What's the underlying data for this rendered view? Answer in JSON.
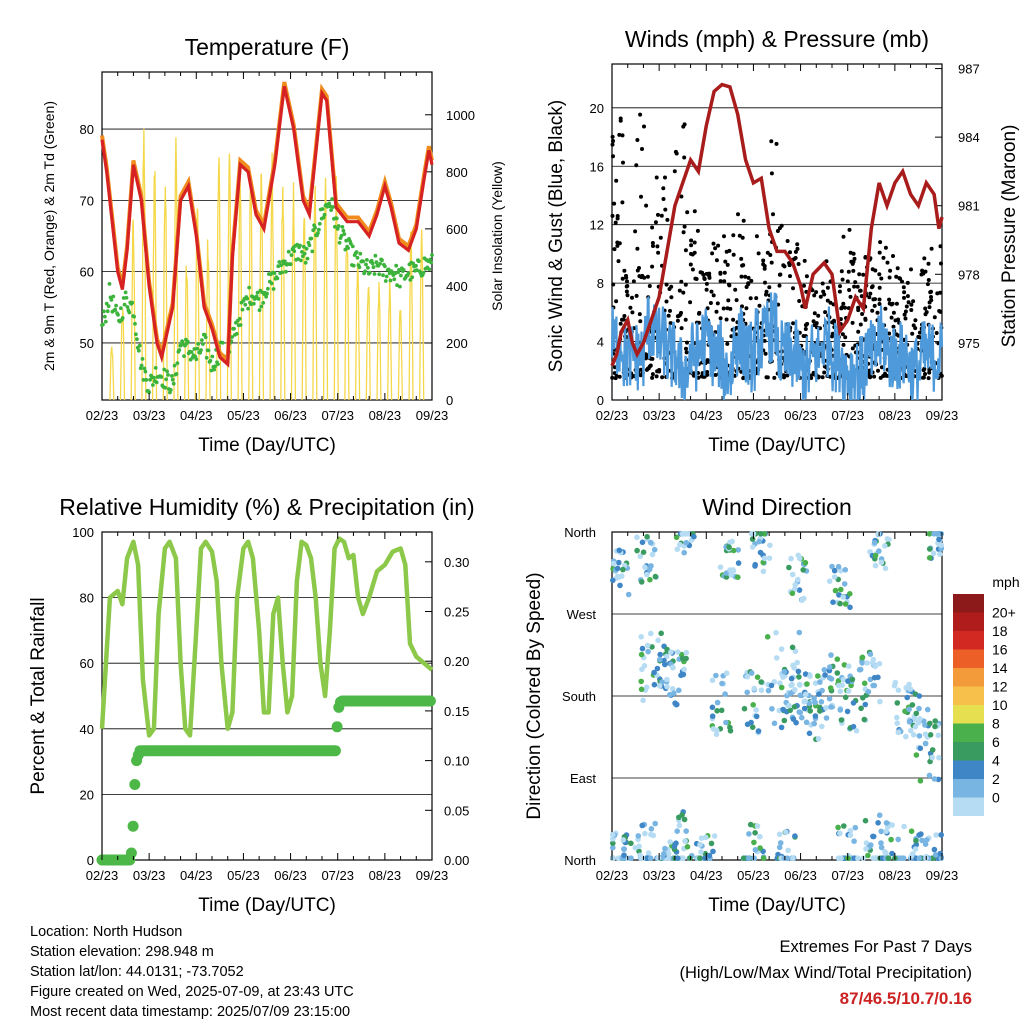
{
  "colors": {
    "temp_red": "#d62222",
    "temp_orange": "#f08c1e",
    "dewpoint_green": "#3cb43c",
    "solar_yellow": "#f5d84a",
    "gust_black": "#000000",
    "wind_blue": "#4d99d9",
    "pressure_maroon": "#a81c1c",
    "rh_lightgreen": "#8cc84a",
    "precip_green": "#4db848",
    "extremes_red": "#cc2222"
  },
  "chart_data": [
    {
      "id": "temperature",
      "type": "line",
      "title": "Temperature (F)",
      "xlabel": "Time (Day/UTC)",
      "ylabel_left": "2m & 9m T (Red, Orange) & 2m Td (Green)",
      "ylabel_right": "Solar Insolation (Yellow)",
      "x_ticks": [
        "02/23",
        "03/23",
        "04/23",
        "05/23",
        "06/23",
        "07/23",
        "08/23",
        "09/23"
      ],
      "ylim_left": [
        42,
        88
      ],
      "ylim_right": [
        0,
        1150
      ],
      "y_ticks_left": [
        50,
        60,
        70,
        80
      ],
      "y_ticks_right": [
        0,
        200,
        400,
        600,
        800,
        1000
      ],
      "series": [
        {
          "name": "2m T",
          "points": [
            [
              0,
              78.5
            ],
            [
              0.3,
              74
            ],
            [
              1,
              60
            ],
            [
              1.3,
              57.5
            ],
            [
              1.6,
              63
            ],
            [
              2,
              75
            ],
            [
              2.5,
              70
            ],
            [
              3,
              58
            ],
            [
              3.5,
              50
            ],
            [
              3.8,
              48
            ],
            [
              4.5,
              55
            ],
            [
              5,
              70
            ],
            [
              5.5,
              72
            ],
            [
              6,
              65
            ],
            [
              6.5,
              55
            ],
            [
              7,
              52
            ],
            [
              7.5,
              48
            ],
            [
              8,
              47
            ],
            [
              8.3,
              62
            ],
            [
              8.8,
              75
            ],
            [
              9.3,
              74
            ],
            [
              9.8,
              68
            ],
            [
              10.3,
              66
            ],
            [
              11,
              75
            ],
            [
              11.6,
              86
            ],
            [
              12.2,
              80
            ],
            [
              12.8,
              70
            ],
            [
              13.2,
              68
            ],
            [
              14,
              85
            ],
            [
              14.3,
              84
            ],
            [
              14.9,
              69
            ],
            [
              15.6,
              67
            ],
            [
              16.3,
              67
            ],
            [
              17,
              65
            ],
            [
              17.5,
              68
            ],
            [
              18,
              72
            ],
            [
              18.4,
              69
            ],
            [
              18.9,
              64
            ],
            [
              19.5,
              63
            ],
            [
              20,
              66
            ],
            [
              20.5,
              73
            ],
            [
              20.8,
              77
            ],
            [
              21,
              75
            ]
          ]
        },
        {
          "name": "2m Td",
          "points": [
            [
              0,
              52
            ],
            [
              0.5,
              57
            ],
            [
              1,
              53
            ],
            [
              1.5,
              56
            ],
            [
              2,
              55
            ],
            [
              2.5,
              47
            ],
            [
              3,
              44
            ],
            [
              3.5,
              46
            ],
            [
              4,
              45
            ],
            [
              4.5,
              44
            ],
            [
              5,
              50
            ],
            [
              5.5,
              49
            ],
            [
              6,
              48
            ],
            [
              6.5,
              50
            ],
            [
              7,
              47
            ],
            [
              7.5,
              49
            ],
            [
              8,
              48
            ],
            [
              8.5,
              52
            ],
            [
              9,
              55
            ],
            [
              9.5,
              57
            ],
            [
              10,
              56
            ],
            [
              10.5,
              58
            ],
            [
              11,
              59
            ],
            [
              11.5,
              61
            ],
            [
              12,
              62
            ],
            [
              12.5,
              63
            ],
            [
              13,
              62
            ],
            [
              13.5,
              65
            ],
            [
              14,
              68
            ],
            [
              14.5,
              70
            ],
            [
              15,
              66
            ],
            [
              15.5,
              64
            ],
            [
              16,
              62
            ],
            [
              16.5,
              61
            ],
            [
              17,
              60
            ],
            [
              17.5,
              61
            ],
            [
              18,
              60
            ],
            [
              18.5,
              60
            ],
            [
              19,
              59
            ],
            [
              19.5,
              60
            ],
            [
              20,
              60
            ],
            [
              20.5,
              61
            ],
            [
              21,
              61
            ]
          ]
        }
      ],
      "solar_daily_peak": [
        200,
        350,
        650,
        1000,
        900,
        880,
        950,
        500,
        700,
        600,
        950,
        930,
        880,
        820,
        900,
        880,
        790,
        800,
        720,
        800,
        780,
        800,
        640,
        500,
        450,
        430,
        430,
        350,
        640,
        600
      ]
    },
    {
      "id": "winds",
      "type": "scatter",
      "title": "Winds (mph) & Pressure (mb)",
      "xlabel": "Time (Day/UTC)",
      "ylabel_left": "Sonic Wind & Gust (Blue, Black)",
      "ylabel_right": "Station Pressure (Maroon)",
      "x_ticks": [
        "02/23",
        "03/23",
        "04/23",
        "05/23",
        "06/23",
        "07/23",
        "08/23",
        "09/23"
      ],
      "ylim_left": [
        0,
        23
      ],
      "ylim_right": [
        972.5,
        987.2
      ],
      "y_ticks_left": [
        0,
        4,
        8,
        12,
        16,
        20
      ],
      "y_ticks_right": [
        975,
        978,
        981,
        984,
        987
      ],
      "pressure": [
        [
          0,
          974
        ],
        [
          0.3,
          974.5
        ],
        [
          0.6,
          975.5
        ],
        [
          1,
          976
        ],
        [
          1.3,
          975
        ],
        [
          1.6,
          974.5
        ],
        [
          2,
          975
        ],
        [
          2.5,
          976
        ],
        [
          3,
          977
        ],
        [
          3.5,
          979
        ],
        [
          4,
          981
        ],
        [
          4.5,
          982
        ],
        [
          5,
          983
        ],
        [
          5.5,
          982.5
        ],
        [
          6,
          984.5
        ],
        [
          6.5,
          986
        ],
        [
          7,
          986.3
        ],
        [
          7.5,
          986.2
        ],
        [
          8,
          985
        ],
        [
          8.5,
          983
        ],
        [
          9,
          982
        ],
        [
          9.5,
          982.2
        ],
        [
          10,
          980
        ],
        [
          10.5,
          979
        ],
        [
          11,
          979
        ],
        [
          11.5,
          978.5
        ],
        [
          12,
          977.5
        ],
        [
          12.3,
          976.5
        ],
        [
          12.8,
          978
        ],
        [
          13.5,
          978.5
        ],
        [
          14,
          978
        ],
        [
          14.5,
          975.5
        ],
        [
          15,
          976
        ],
        [
          15.5,
          977
        ],
        [
          16,
          976.5
        ],
        [
          16.5,
          980
        ],
        [
          17,
          982
        ],
        [
          17.5,
          981
        ],
        [
          18,
          982
        ],
        [
          18.5,
          982.5
        ],
        [
          19,
          981.5
        ],
        [
          19.5,
          981
        ],
        [
          20,
          982
        ],
        [
          20.5,
          981.5
        ],
        [
          20.8,
          980
        ],
        [
          21,
          980.5
        ]
      ],
      "wind_daily_mean": [
        4,
        3,
        3,
        5,
        4,
        3,
        2,
        3,
        4,
        3,
        2,
        4,
        3,
        4,
        5,
        3,
        3,
        2,
        3,
        4,
        3,
        2,
        2,
        3,
        4,
        3,
        3,
        2,
        3,
        3
      ],
      "gust_daily_max": [
        20,
        9,
        20,
        14,
        16,
        17,
        22,
        13,
        9,
        11,
        12,
        13,
        9,
        12,
        18,
        12,
        11,
        10,
        8,
        10,
        9,
        12,
        10,
        10,
        11,
        10,
        9,
        9,
        10,
        11
      ]
    },
    {
      "id": "humidity",
      "type": "line",
      "title": "Relative Humidity (%) & Precipitation (in)",
      "xlabel": "Time (Day/UTC)",
      "ylabel_left": "Percent & Total Rainfall",
      "x_ticks": [
        "02/23",
        "03/23",
        "04/23",
        "05/23",
        "06/23",
        "07/23",
        "08/23",
        "09/23"
      ],
      "ylim_left": [
        0,
        100
      ],
      "ylim_right": [
        0,
        0.33
      ],
      "y_ticks_left": [
        0,
        20,
        40,
        60,
        80,
        100
      ],
      "y_ticks_right": [
        "0.00",
        "0.05",
        "0.10",
        "0.15",
        "0.20",
        "0.25",
        "0.30"
      ],
      "series": [
        {
          "name": "RH",
          "points": [
            [
              0,
              40
            ],
            [
              0.5,
              80
            ],
            [
              1,
              82
            ],
            [
              1.3,
              78
            ],
            [
              1.6,
              92
            ],
            [
              2,
              97
            ],
            [
              2.3,
              90
            ],
            [
              2.6,
              55
            ],
            [
              3,
              38
            ],
            [
              3.3,
              40
            ],
            [
              3.6,
              75
            ],
            [
              4,
              95
            ],
            [
              4.3,
              97
            ],
            [
              4.7,
              92
            ],
            [
              5,
              60
            ],
            [
              5.3,
              40
            ],
            [
              5.6,
              38
            ],
            [
              6,
              70
            ],
            [
              6.3,
              95
            ],
            [
              6.6,
              97
            ],
            [
              7,
              94
            ],
            [
              7.3,
              85
            ],
            [
              7.6,
              60
            ],
            [
              8,
              40
            ],
            [
              8.3,
              45
            ],
            [
              8.6,
              80
            ],
            [
              9,
              95
            ],
            [
              9.3,
              97
            ],
            [
              9.6,
              92
            ],
            [
              10,
              70
            ],
            [
              10.3,
              45
            ],
            [
              10.6,
              45
            ],
            [
              10.9,
              75
            ],
            [
              11.2,
              80
            ],
            [
              11.5,
              60
            ],
            [
              11.8,
              45
            ],
            [
              12.1,
              50
            ],
            [
              12.4,
              85
            ],
            [
              12.7,
              97
            ],
            [
              13,
              96
            ],
            [
              13.3,
              92
            ],
            [
              13.6,
              80
            ],
            [
              13.9,
              60
            ],
            [
              14.2,
              50
            ],
            [
              14.5,
              70
            ],
            [
              14.8,
              95
            ],
            [
              15.1,
              98
            ],
            [
              15.4,
              97
            ],
            [
              15.7,
              92
            ],
            [
              16,
              93
            ],
            [
              16.3,
              80
            ],
            [
              16.6,
              75
            ],
            [
              17,
              80
            ],
            [
              17.5,
              88
            ],
            [
              18,
              90
            ],
            [
              18.5,
              94
            ],
            [
              19,
              95
            ],
            [
              19.3,
              90
            ],
            [
              19.6,
              66
            ],
            [
              20,
              62
            ],
            [
              20.5,
              60
            ],
            [
              21,
              58
            ]
          ]
        },
        {
          "name": "Precip",
          "points": [
            [
              0,
              0
            ],
            [
              1.8,
              0
            ],
            [
              1.9,
              0.01
            ],
            [
              2.0,
              0.04
            ],
            [
              2.1,
              0.08
            ],
            [
              2.2,
              0.1
            ],
            [
              2.4,
              0.11
            ],
            [
              14.9,
              0.11
            ],
            [
              15.0,
              0.15
            ],
            [
              15.2,
              0.16
            ],
            [
              21,
              0.16
            ]
          ]
        }
      ]
    },
    {
      "id": "wind_direction",
      "type": "scatter",
      "title": "Wind Direction",
      "xlabel": "Time (Day/UTC)",
      "ylabel_left": "Direction (Colored By Speed)",
      "x_ticks": [
        "02/23",
        "03/23",
        "04/23",
        "05/23",
        "06/23",
        "07/23",
        "08/23",
        "09/23"
      ],
      "y_ticks": [
        "North",
        "East",
        "South",
        "West",
        "North"
      ],
      "ylim": [
        0,
        360
      ],
      "legend_title": "mph",
      "legend_labels": [
        "20+",
        "18",
        "16",
        "14",
        "12",
        "10",
        "8",
        "6",
        "4",
        "2",
        "0"
      ],
      "legend_colors": [
        "#8c1a1a",
        "#b01c1c",
        "#d22a22",
        "#ec6028",
        "#f39a3a",
        "#f6c04a",
        "#e6e050",
        "#49b04c",
        "#3a9b60",
        "#3f86c6",
        "#78b5e2",
        "#b6dcf3"
      ]
    }
  ],
  "info": {
    "location": "Location: North Hudson",
    "elevation": "Station elevation: 298.948 m",
    "latlon": "Station lat/lon: 44.0131; -73.7052",
    "created": "Figure created on Wed, 2025-07-09, at 23:43 UTC",
    "recent": "Most recent data timestamp: 2025/07/09 23:15:00"
  },
  "extremes": {
    "title": "Extremes For Past 7 Days",
    "subtitle": "(High/Low/Max Wind/Total Precipitation)",
    "values": "87/46.5/10.7/0.16"
  }
}
